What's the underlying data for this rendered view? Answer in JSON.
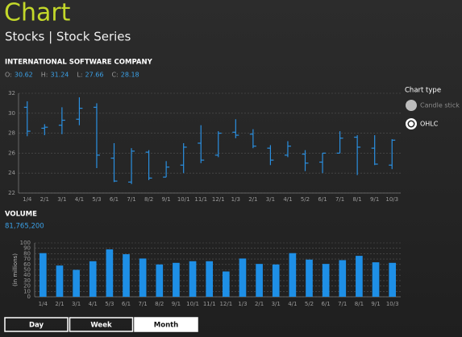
{
  "header": {
    "title": "Chart",
    "subtitle": "Stocks | Stock Series"
  },
  "chart_type": {
    "label": "Chart type",
    "options": [
      "Candle stick",
      "OHLC"
    ],
    "selected": 1
  },
  "range_buttons": {
    "options": [
      "Day",
      "Week",
      "Month"
    ],
    "selected": 2
  },
  "chart_data": [
    {
      "type": "ohlc",
      "title": "INTERNATIONAL SOFTWARE COMPANY",
      "summary": [
        {
          "label": "O:",
          "value": "30.62"
        },
        {
          "label": "H:",
          "value": "31.24"
        },
        {
          "label": "L:",
          "value": "27.66"
        },
        {
          "label": "C:",
          "value": "28.18"
        }
      ],
      "categories": [
        "1/4",
        "2/1",
        "3/1",
        "4/1",
        "5/3",
        "6/1",
        "7/1",
        "8/2",
        "9/1",
        "10/1",
        "11/1",
        "12/1",
        "1/3",
        "2/1",
        "3/1",
        "4/1",
        "5/2",
        "6/1",
        "7/1",
        "8/1",
        "9/1",
        "10/3"
      ],
      "open": [
        30.6,
        28.5,
        28.8,
        29.4,
        30.6,
        25.5,
        23.1,
        26.1,
        23.6,
        24.8,
        27.0,
        25.8,
        28.1,
        27.9,
        26.5,
        25.8,
        25.9,
        25.1,
        26.0,
        27.6,
        26.5,
        24.8
      ],
      "high": [
        31.2,
        28.9,
        30.6,
        31.6,
        31.0,
        27.0,
        26.5,
        26.3,
        25.2,
        27.0,
        28.8,
        28.2,
        29.4,
        28.4,
        26.8,
        27.2,
        26.3,
        26.0,
        28.2,
        27.8,
        27.8,
        27.4
      ],
      "low": [
        27.7,
        27.8,
        27.9,
        28.8,
        24.5,
        23.1,
        22.9,
        23.3,
        23.6,
        24.0,
        25.0,
        25.6,
        27.5,
        26.5,
        24.8,
        25.6,
        24.2,
        24.0,
        26.0,
        23.8,
        24.8,
        24.4
      ],
      "close": [
        28.2,
        28.6,
        29.3,
        30.5,
        25.8,
        23.2,
        26.2,
        23.5,
        24.6,
        26.6,
        25.3,
        28.0,
        27.8,
        26.7,
        25.3,
        26.7,
        25.0,
        26.0,
        27.5,
        26.6,
        24.9,
        27.3
      ],
      "color": "#2a8fe0",
      "ylim": [
        22,
        32
      ],
      "yticks": [
        22,
        24,
        26,
        28,
        30,
        32
      ],
      "grid": true
    },
    {
      "type": "bar",
      "title": "VOLUME",
      "subtitle": "81,765,200",
      "ylabel": "(in millions)",
      "categories": [
        "1/4",
        "2/1",
        "3/1",
        "4/1",
        "5/3",
        "6/1",
        "7/1",
        "8/2",
        "9/1",
        "10/1",
        "11/1",
        "12/1",
        "1/3",
        "2/1",
        "3/1",
        "4/1",
        "5/2",
        "6/1",
        "7/1",
        "8/1",
        "9/1",
        "10/3"
      ],
      "values": [
        81,
        58,
        50,
        66,
        88,
        79,
        71,
        60,
        63,
        66,
        66,
        47,
        71,
        61,
        60,
        81,
        69,
        61,
        68,
        76,
        64,
        63
      ],
      "color": "#1e8fe6",
      "ylim": [
        0,
        100
      ],
      "yticks": [
        0,
        10,
        20,
        30,
        40,
        50,
        60,
        70,
        80,
        90,
        100
      ],
      "grid": true
    }
  ]
}
